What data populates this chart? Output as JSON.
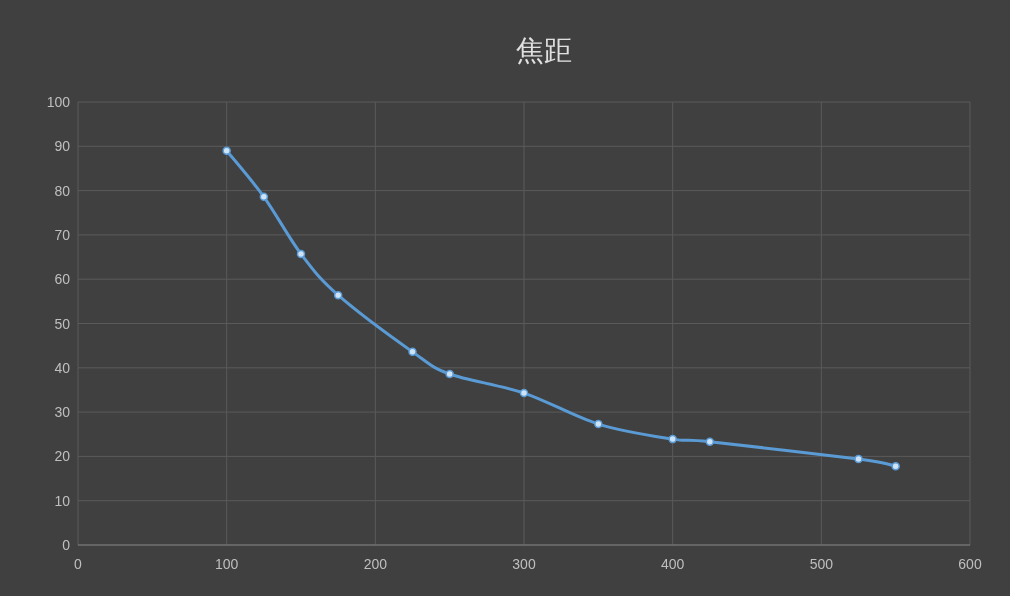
{
  "chart_data": {
    "type": "line",
    "title": "焦距",
    "x": [
      100,
      125,
      150,
      175,
      225,
      250,
      300,
      350,
      400,
      425,
      525,
      550
    ],
    "series": [
      {
        "color": "#5b9bd5",
        "values": [
          89,
          78.6,
          65.7,
          56.4,
          43.6,
          38.6,
          34.3,
          27.3,
          23.9,
          23.3,
          19.4,
          17.8
        ]
      }
    ],
    "xlim": [
      0,
      600
    ],
    "xticks": [
      0,
      100,
      200,
      300,
      400,
      500,
      600
    ],
    "ylim": [
      0,
      100
    ],
    "yticks": [
      0,
      10,
      20,
      30,
      40,
      50,
      60,
      70,
      80,
      90,
      100
    ],
    "grid": true,
    "marker": "circle",
    "line_style": "solid"
  }
}
